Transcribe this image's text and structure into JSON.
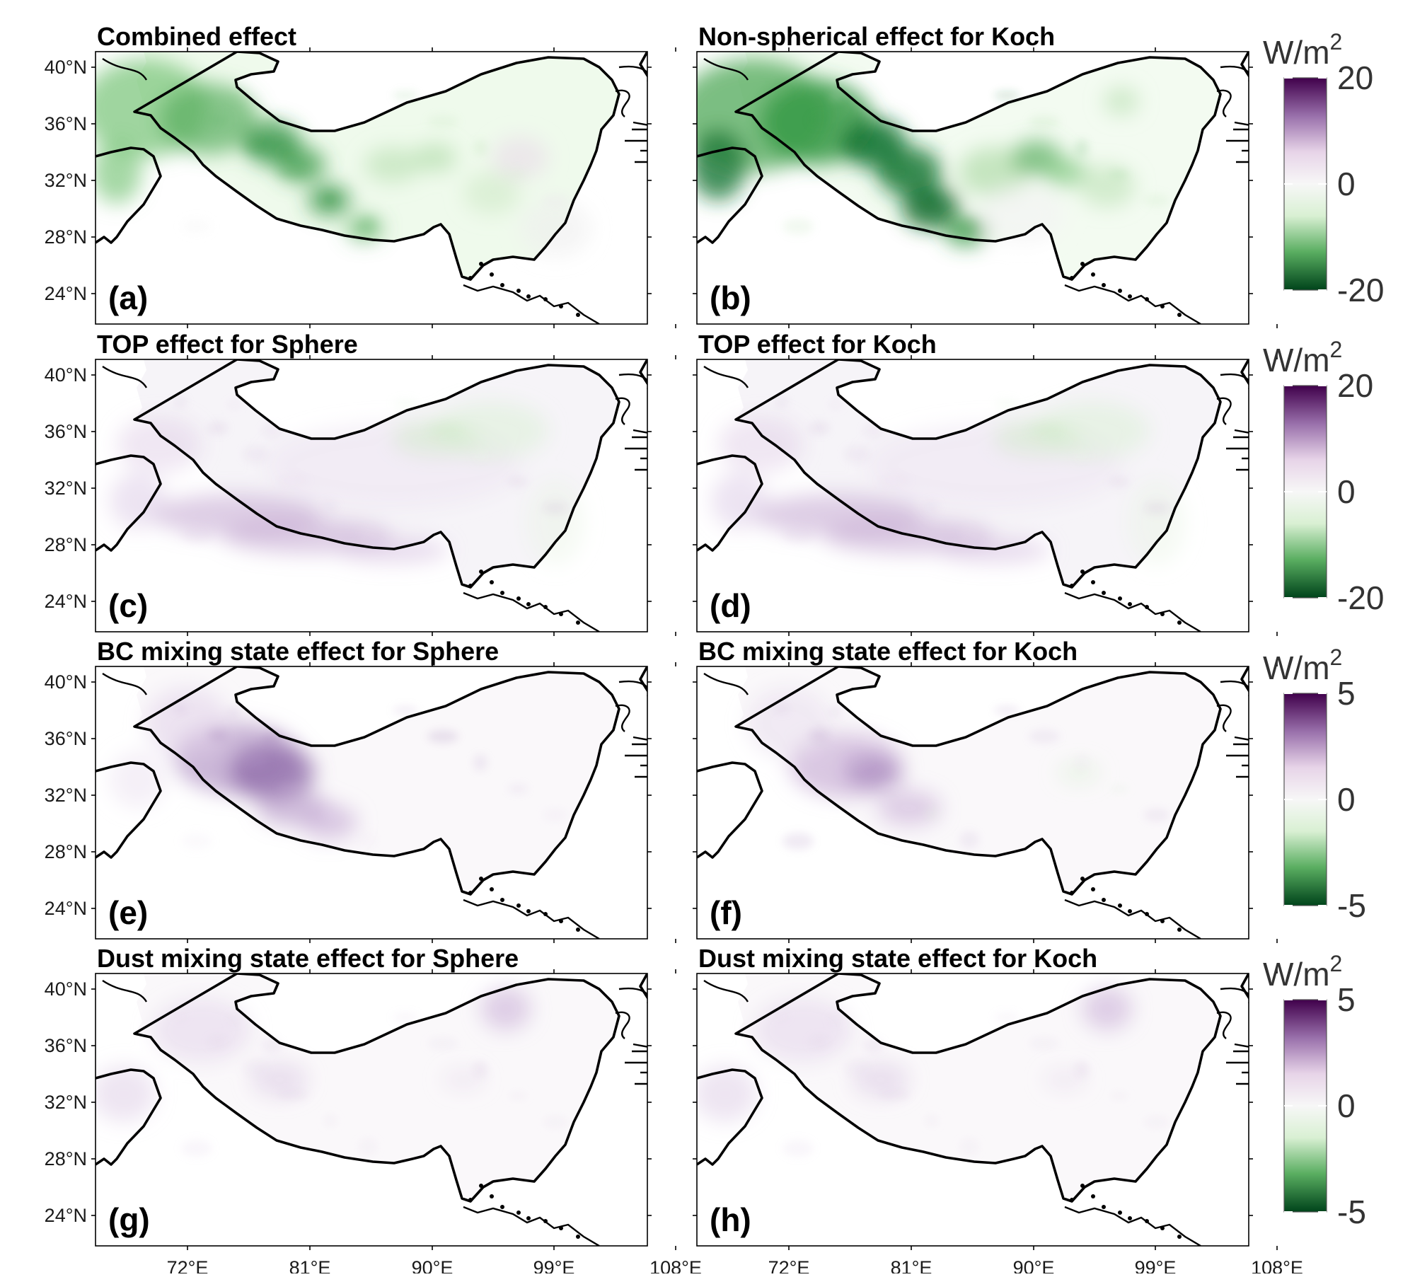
{
  "figure": {
    "panels": [
      {
        "id": "a",
        "title": "Combined effect",
        "label": "(a)",
        "pattern": "green_west",
        "colorbar": 1
      },
      {
        "id": "b",
        "title": "Non-spherical effect for Koch",
        "label": "(b)",
        "pattern": "strong_green",
        "colorbar": 1
      },
      {
        "id": "c",
        "title": "TOP effect for Sphere",
        "label": "(c)",
        "pattern": "purple_edge",
        "colorbar": 2
      },
      {
        "id": "d",
        "title": "TOP effect for Koch",
        "label": "(d)",
        "pattern": "purple_edge",
        "colorbar": 2
      },
      {
        "id": "e",
        "title": "BC mixing state effect for Sphere",
        "label": "(e)",
        "pattern": "purple_west",
        "colorbar": 3
      },
      {
        "id": "f",
        "title": "BC mixing state effect for Koch",
        "label": "(f)",
        "pattern": "purple_west_weak",
        "colorbar": 3
      },
      {
        "id": "g",
        "title": "Dust mixing state effect for Sphere",
        "label": "(g)",
        "pattern": "purple_faint",
        "colorbar": 4
      },
      {
        "id": "h",
        "title": "Dust mixing state effect for Koch",
        "label": "(h)",
        "pattern": "purple_faint",
        "colorbar": 4
      }
    ],
    "lat_ticks": [
      "40°N",
      "36°N",
      "32°N",
      "28°N",
      "24°N"
    ],
    "lon_ticks": [
      "72°E",
      "81°E",
      "90°E",
      "99°E",
      "108°E"
    ],
    "colorbars": [
      {
        "unit_base": "W/m",
        "unit_sup": "2",
        "max_label": "20",
        "zero_label": "0",
        "min_label": "-20",
        "max": 20,
        "min": -20
      },
      {
        "unit_base": "W/m",
        "unit_sup": "2",
        "max_label": "20",
        "zero_label": "0",
        "min_label": "-20",
        "max": 20,
        "min": -20
      },
      {
        "unit_base": "W/m",
        "unit_sup": "2",
        "max_label": "5",
        "zero_label": "0",
        "min_label": "-5",
        "max": 5,
        "min": -5
      },
      {
        "unit_base": "W/m",
        "unit_sup": "2",
        "max_label": "5",
        "zero_label": "0",
        "min_label": "-5",
        "max": 5,
        "min": -5
      }
    ],
    "colormap": {
      "negative_color": "#00441b",
      "zero_color": "#f7f7f7",
      "positive_color": "#40004b"
    }
  }
}
